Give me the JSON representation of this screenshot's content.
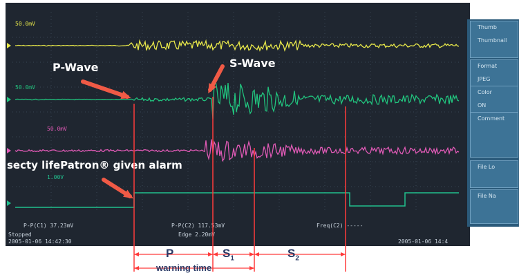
{
  "annotations": {
    "p_wave": "P-Wave",
    "s_wave": "S-Wave",
    "alarm": "secty lifePatron® given alarm"
  },
  "channels": [
    {
      "name": "ch1",
      "color": "#e8e84a",
      "scale": "50.0mV"
    },
    {
      "name": "ch2",
      "color": "#21c47e",
      "scale": "50.0mV"
    },
    {
      "name": "ch3",
      "color": "#e05ab6",
      "scale": "50.0mV"
    },
    {
      "name": "ch4",
      "color": "#21c08e",
      "scale": "1.00V"
    }
  ],
  "softmenu": {
    "items": [
      {
        "label": "Thumb",
        "sub": "Thumbnail"
      },
      {
        "label": "Format",
        "sub": "JPEG"
      },
      {
        "label": "Color",
        "sub": "ON"
      },
      {
        "label": "Comment",
        "sub": ""
      },
      {
        "label": "File Lo",
        "sub": ""
      },
      {
        "label": "File Na",
        "sub": ""
      }
    ]
  },
  "status": {
    "meas1": "P-P(C1)  37.23mV",
    "meas2": "P-P(C2)  117.53mV",
    "meas3": "Freq(C2)  -----",
    "state": "Stopped",
    "timestamp_left": "2005-01-06 14:42:30",
    "edge": "Edge  2.20mV",
    "timestamp_right": "2005-01-06 14:4"
  },
  "timeline": {
    "p": "P",
    "s1": "S",
    "s1_sub": "1",
    "s2": "S",
    "s2_sub": "2",
    "warning": "warning time"
  },
  "colors": {
    "background": "#1f2630",
    "grid": "#3a4654",
    "arrow": "#f05a46",
    "marker": "#ff3b3b",
    "ch1": "#e8e84a",
    "ch2": "#21c47e",
    "ch3": "#e05ab6",
    "ch4": "#21c08e"
  }
}
